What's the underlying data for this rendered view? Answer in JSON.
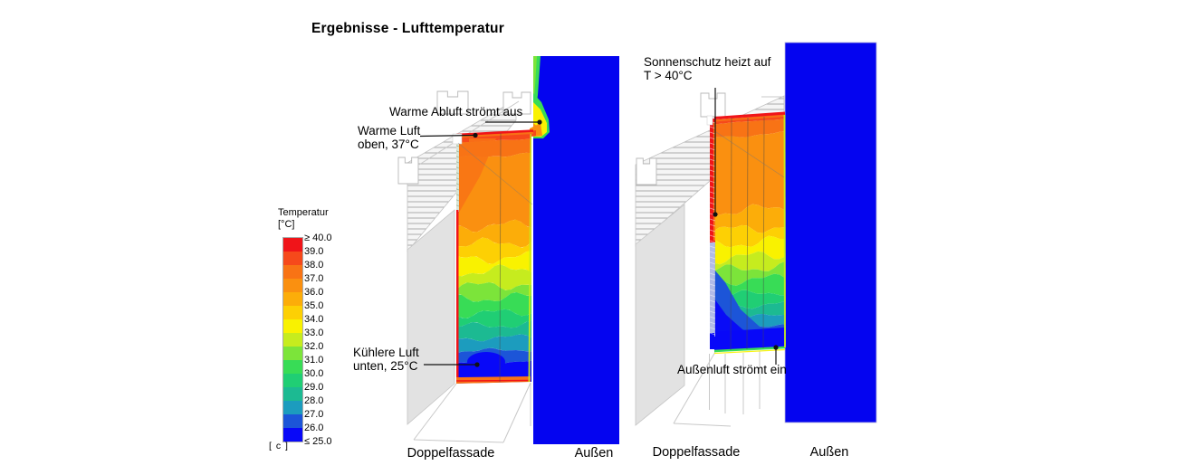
{
  "chart_data": {
    "type": "heatmap",
    "title": "Ergebnisse - Lufttemperatur",
    "outside_color": "#0404F0",
    "colorbar": {
      "title": "Temperatur",
      "unit": "[°C]",
      "corner_label": "[ c ]",
      "tick_labels": [
        "≥ 40.0",
        "39.0",
        "38.0",
        "37.0",
        "36.0",
        "35.0",
        "34.0",
        "33.0",
        "32.0",
        "31.0",
        "30.0",
        "29.0",
        "28.0",
        "27.0",
        "26.0",
        "≤ 25.0"
      ],
      "band_colors": [
        "#F01419",
        "#F6491B",
        "#F87315",
        "#FA9010",
        "#FCAD09",
        "#FDD004",
        "#F9F200",
        "#C6EC1E",
        "#7CE43A",
        "#38DC56",
        "#20CE74",
        "#1CBA92",
        "#1C9CBE",
        "#1C55D8",
        "#0808F8"
      ]
    },
    "panels": [
      {
        "x_labels": [
          "Doppelfassade",
          "Außen"
        ],
        "annotations": [
          {
            "lines": [
              "Warme Abluft strömt aus"
            ]
          },
          {
            "lines": [
              "Warme Luft",
              "oben, 37°C"
            ]
          },
          {
            "lines": [
              "Kühlere Luft",
              "unten, 25°C"
            ]
          }
        ],
        "stratification": [
          [
            1,
            0.03
          ],
          [
            2,
            0.09
          ],
          [
            3,
            0.37
          ],
          [
            4,
            0.44
          ],
          [
            5,
            0.5
          ],
          [
            6,
            0.55
          ],
          [
            7,
            0.61
          ],
          [
            8,
            0.66
          ],
          [
            9,
            0.72
          ],
          [
            10,
            0.77
          ],
          [
            11,
            0.82
          ],
          [
            12,
            0.87
          ],
          [
            13,
            0.92
          ],
          [
            14,
            1.0
          ]
        ]
      },
      {
        "x_labels": [
          "Doppelfassade",
          "Außen"
        ],
        "annotations": [
          {
            "lines": [
              "Sonnenschutz heizt auf",
              "T > 40°C"
            ]
          },
          {
            "lines": [
              "Außenluft strömt ein"
            ]
          }
        ],
        "stratification": [
          [
            1,
            0.02
          ],
          [
            2,
            0.08
          ],
          [
            3,
            0.4
          ],
          [
            4,
            0.48
          ],
          [
            5,
            0.54
          ],
          [
            6,
            0.6
          ],
          [
            7,
            0.65
          ],
          [
            8,
            0.7
          ],
          [
            9,
            0.76
          ],
          [
            10,
            0.81
          ],
          [
            11,
            0.86
          ],
          [
            12,
            0.9
          ],
          [
            13,
            0.95
          ],
          [
            14,
            1.0
          ]
        ]
      }
    ]
  }
}
